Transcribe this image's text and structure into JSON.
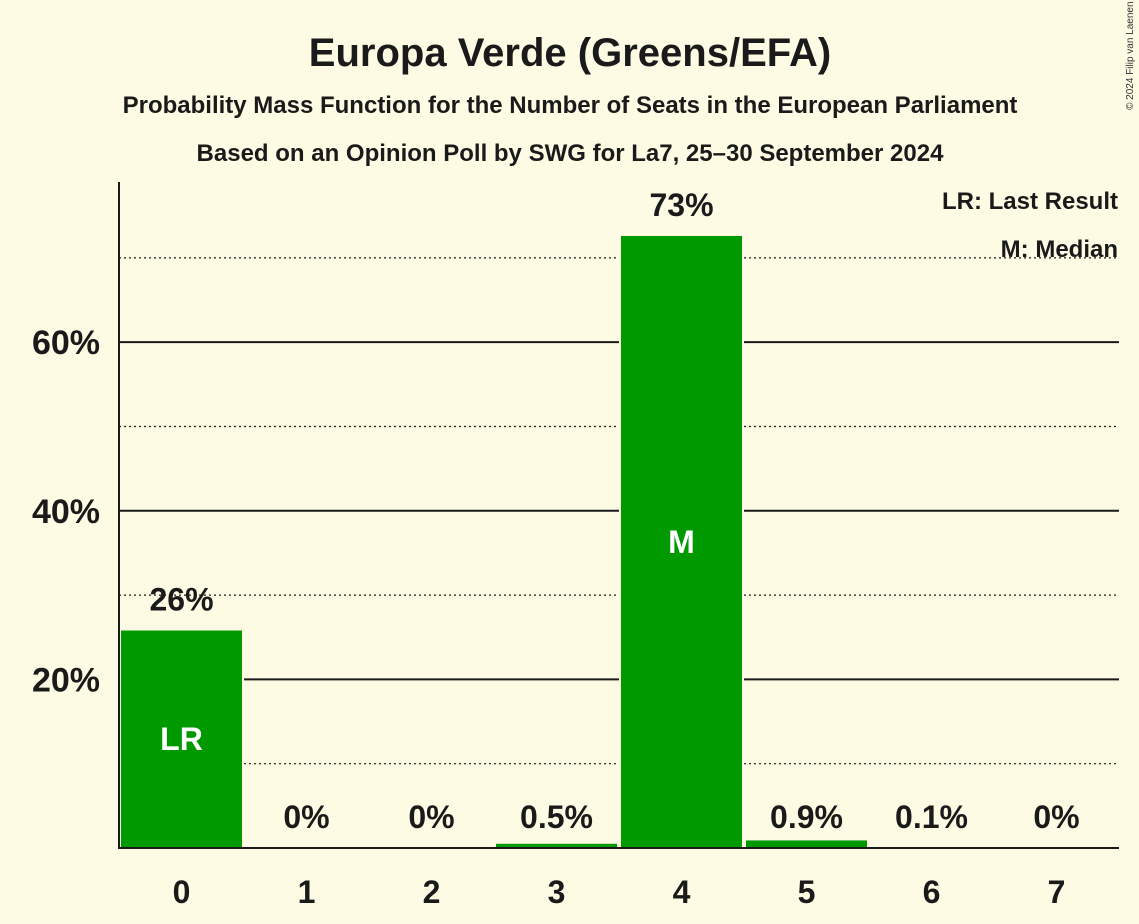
{
  "chart_data": {
    "type": "bar",
    "title": "Europa Verde (Greens/EFA)",
    "subtitle": "Probability Mass Function for the Number of Seats in the European Parliament",
    "subtitle2": "Based on an Opinion Poll by SWG for La7, 25–30 September 2024",
    "copyright": "© 2024 Filip van Laenen",
    "categories": [
      "0",
      "1",
      "2",
      "3",
      "4",
      "5",
      "6",
      "7"
    ],
    "values": [
      25.8,
      0,
      0,
      0.5,
      72.6,
      0.9,
      0.1,
      0
    ],
    "value_labels": [
      "26%",
      "0%",
      "0%",
      "0.5%",
      "73%",
      "0.9%",
      "0.1%",
      "0%"
    ],
    "bar_markers": [
      "LR",
      "",
      "",
      "",
      "M",
      "",
      "",
      ""
    ],
    "yticks": [
      20,
      40,
      60
    ],
    "ytick_labels": [
      "20%",
      "40%",
      "60%"
    ],
    "minor_gridlines": [
      10,
      30,
      50,
      70
    ],
    "ylim": [
      0,
      79
    ],
    "legend": [
      "LR: Last Result",
      "M: Median"
    ],
    "legend_position": "top-right",
    "colors": {
      "bar": "#009900",
      "background": "#fdfbe4",
      "text": "#1a1a1a"
    }
  }
}
